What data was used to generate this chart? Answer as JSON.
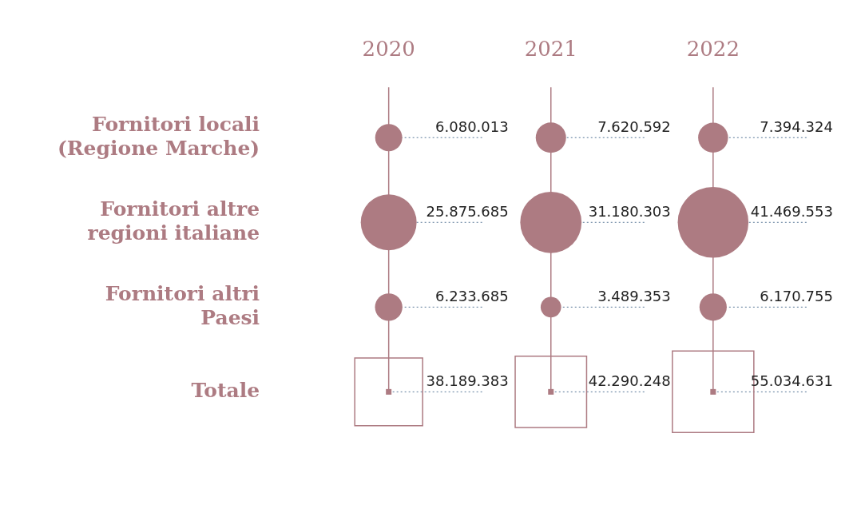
{
  "chart_data": {
    "type": "other",
    "categories": [
      "2020",
      "2021",
      "2022"
    ],
    "legend": false,
    "series": [
      {
        "name": "Fornitori locali (Regione Marche)",
        "color": "#ad7b82",
        "marker": "circle",
        "values": [
          6080013,
          7620592,
          7394324
        ],
        "value_labels": [
          "6.080.013",
          "7.620.592",
          "7.394.324"
        ]
      },
      {
        "name": "Fornitori altre regioni italiane",
        "color": "#ad7b82",
        "marker": "circle",
        "values": [
          25875685,
          31180303,
          41469553
        ],
        "value_labels": [
          "25.875.685",
          "31.180.303",
          "41.469.553"
        ]
      },
      {
        "name": "Fornitori altri Paesi",
        "color": "#ad7b82",
        "marker": "circle",
        "values": [
          6233685,
          3489353,
          6170755
        ],
        "value_labels": [
          "6.233.685",
          "3.489.353",
          "6.170.755"
        ]
      },
      {
        "name": "Totale",
        "color": "#ad7b82",
        "marker": "square",
        "values": [
          38189383,
          42290248,
          55034631
        ],
        "value_labels": [
          "38.189.383",
          "42.290.248",
          "55.034.631"
        ]
      }
    ]
  }
}
